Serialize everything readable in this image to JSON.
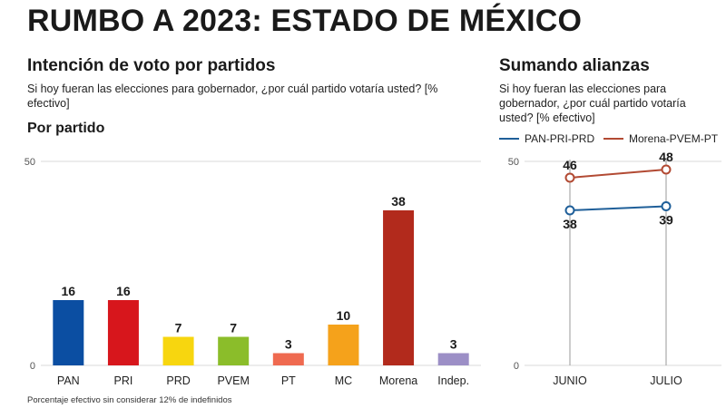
{
  "header": {
    "title": "RUMBO A 2023: ESTADO DE MÉXICO"
  },
  "left_panel": {
    "title": "Intención de voto por partidos",
    "question": "Si hoy fueran las elecciones para gobernador, ¿por cuál partido votaría usted? [% efectivo]",
    "subtitle": "Por partido"
  },
  "right_panel": {
    "title": "Sumando alianzas",
    "question": "Si hoy fueran las elecciones para gobernador, ¿por cuál partido votaría usted? [% efectivo]"
  },
  "footnote": "Porcentaje efectivo sin considerar 12% de indefinidos",
  "chart_data": [
    {
      "type": "bar",
      "title": "Por partido",
      "categories": [
        "PAN",
        "PRI",
        "PRD",
        "PVEM",
        "PT",
        "MC",
        "Morena",
        "Indep."
      ],
      "values": [
        16,
        16,
        7,
        7,
        3,
        10,
        38,
        3
      ],
      "colors": [
        "#0b4ea2",
        "#d7161c",
        "#f7d60f",
        "#8bbd2a",
        "#ef6a50",
        "#f5a21b",
        "#b22a1c",
        "#9c8fc6"
      ],
      "ylim": [
        0,
        50
      ],
      "yticks": [
        0,
        50
      ],
      "grid": false
    },
    {
      "type": "line",
      "title": "Sumando alianzas",
      "categories": [
        "JUNIO",
        "JULIO"
      ],
      "series": [
        {
          "name": "PAN-PRI-PRD",
          "values": [
            38,
            39
          ],
          "color": "#1f5f99"
        },
        {
          "name": "Morena-PVEM-PT",
          "values": [
            46,
            48
          ],
          "color": "#b24a33"
        }
      ],
      "ylim": [
        0,
        50
      ],
      "yticks": [
        0,
        50
      ],
      "legend": "top",
      "grid": false
    }
  ]
}
